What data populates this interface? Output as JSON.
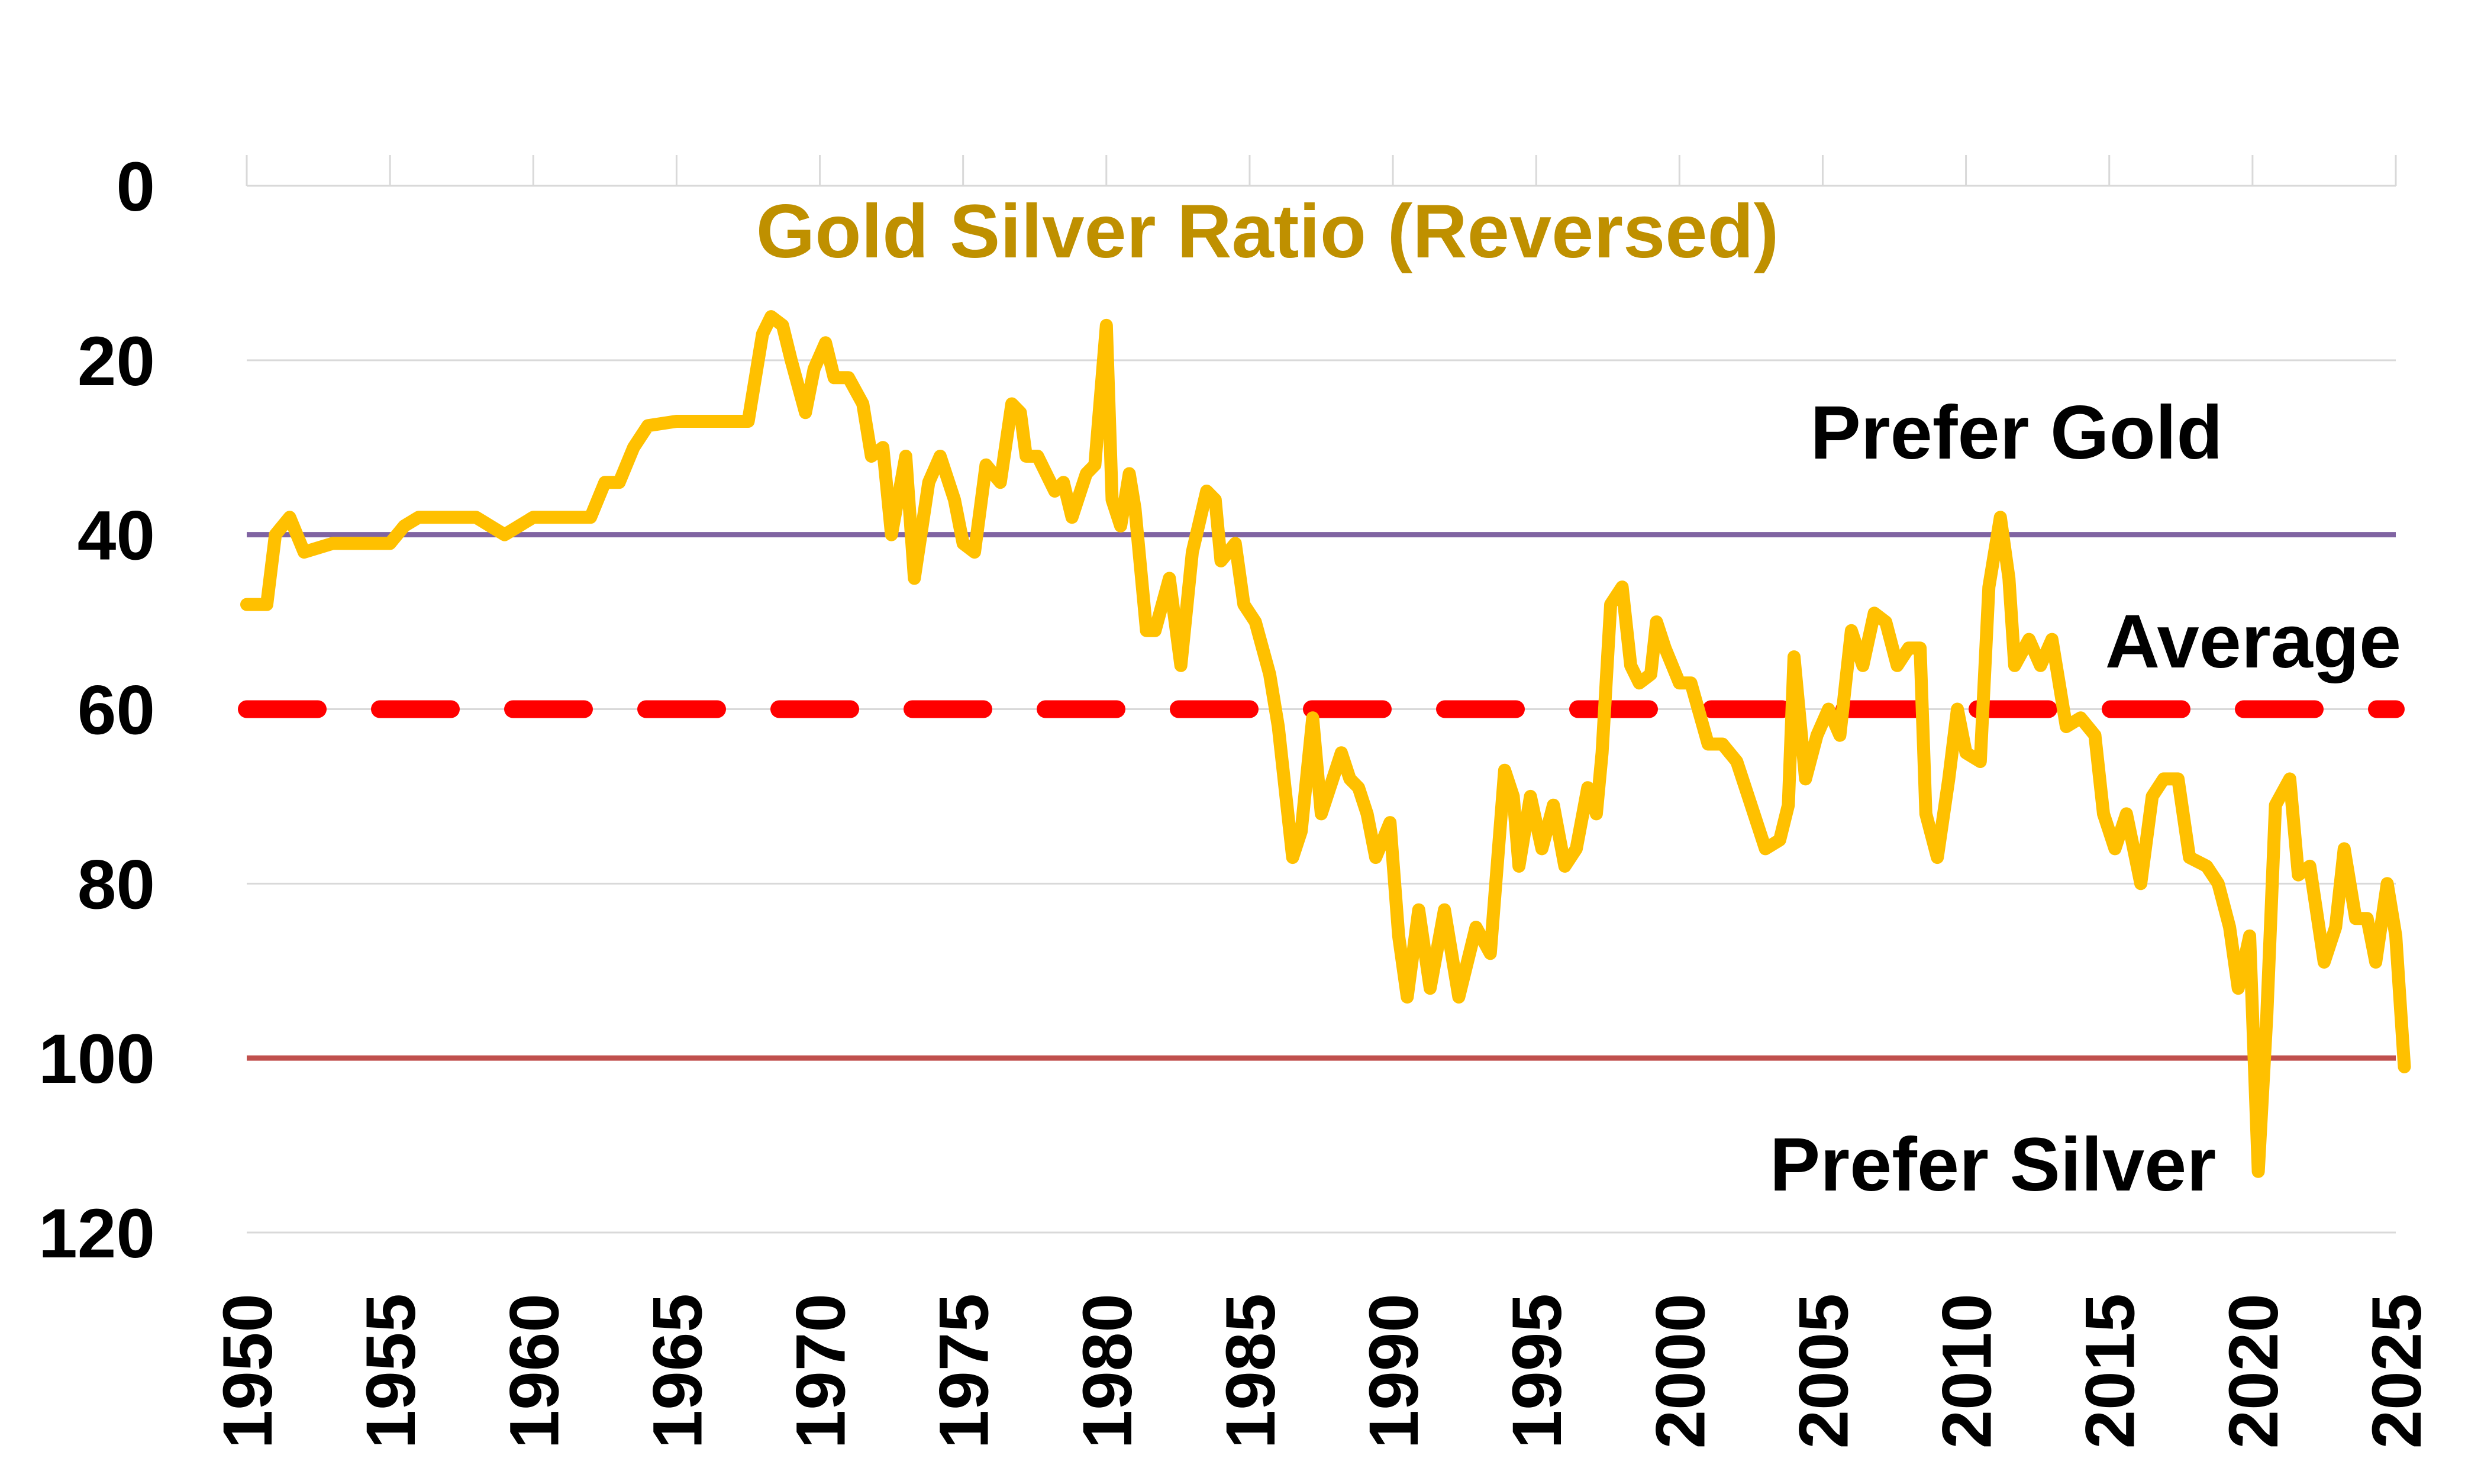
{
  "chart_data": {
    "type": "line",
    "title": "Gold Silver Ratio (Reversed)",
    "xlabel": "",
    "ylabel": "",
    "xlim": [
      1950,
      2025
    ],
    "ylim": [
      0,
      120
    ],
    "y_reversed": true,
    "grid": true,
    "x_ticks": [
      "1950",
      "1955",
      "1960",
      "1965",
      "1970",
      "1975",
      "1980",
      "1985",
      "1990",
      "1995",
      "2000",
      "2005",
      "2010",
      "2015",
      "2020",
      "2025"
    ],
    "y_ticks": [
      "0",
      "20",
      "40",
      "60",
      "80",
      "100",
      "120"
    ],
    "colors": {
      "series": "#FFC000",
      "title": "#BF9000",
      "prefer_gold_line": "#8064A2",
      "prefer_silver_line": "#C0504D",
      "average_line": "#FF0000",
      "grid": "#D9D9D9"
    },
    "reference_lines": [
      {
        "label": "Prefer Gold",
        "value": 40,
        "style": "solid"
      },
      {
        "label": "Average",
        "value": 60,
        "style": "dashed"
      },
      {
        "label": "Prefer Silver",
        "value": 100,
        "style": "solid"
      }
    ],
    "series": [
      {
        "x": [
          1950,
          1950.7,
          1951,
          1951.5,
          1952,
          1953,
          1954,
          1955,
          1955.5,
          1956,
          1957,
          1958,
          1959,
          1960,
          1961,
          1962,
          1962.5,
          1963,
          1963.5,
          1964,
          1965,
          1966,
          1967,
          1967.5,
          1967.8,
          1968,
          1968.3,
          1968.7,
          1969,
          1969.5,
          1969.8,
          1970.2,
          1970.5,
          1971,
          1971.5,
          1971.8,
          1972.2,
          1972.5,
          1973,
          1973.3,
          1973.8,
          1974.2,
          1974.7,
          1975,
          1975.4,
          1975.8,
          1976.3,
          1976.7,
          1977,
          1977.2,
          1977.6,
          1978.2,
          1978.5,
          1978.8,
          1979.3,
          1979.6,
          1980,
          1980.2,
          1980.5,
          1980.8,
          1981,
          1981.4,
          1981.7,
          1982.2,
          1982.6,
          1983,
          1983.5,
          1983.8,
          1984,
          1984.5,
          1984.8,
          1985.2,
          1985.7,
          1986,
          1986.5,
          1986.8,
          1987.2,
          1987.5,
          1987.9,
          1988.2,
          1988.5,
          1988.8,
          1989.1,
          1989.4,
          1989.9,
          1990.2,
          1990.5,
          1990.9,
          1991.3,
          1991.8,
          1992.3,
          1992.9,
          1993.4,
          1993.9,
          1994.2,
          1994.4,
          1994.8,
          1995.2,
          1995.6,
          1996,
          1996.4,
          1996.8,
          1997.1,
          1997.3,
          1997.6,
          1998,
          1998.3,
          1998.6,
          1999,
          1999.2,
          1999.5,
          2000,
          2000.4,
          2001,
          2001.5,
          2002,
          2002.4,
          2003,
          2003.5,
          2003.8,
          2004,
          2004.4,
          2004.8,
          2005.2,
          2005.6,
          2006,
          2006.4,
          2006.8,
          2007.2,
          2007.6,
          2008,
          2008.4,
          2008.6,
          2009,
          2009.4,
          2009.7,
          2010,
          2010.5,
          2010.8,
          2011.2,
          2011.5,
          2011.7,
          2012.2,
          2012.6,
          2013,
          2013.5,
          2014,
          2014.5,
          2014.8,
          2015.2,
          2015.6,
          2016.1,
          2016.5,
          2016.9,
          2017.4,
          2017.8,
          2018.4,
          2018.8,
          2019.2,
          2019.5,
          2019.9,
          2020.2,
          2020.5,
          2020.8,
          2021.3,
          2021.6,
          2022,
          2022.5,
          2022.9,
          2023.2,
          2023.6,
          2024,
          2024.3,
          2024.7,
          2025,
          2025.1,
          2025.3
        ],
        "values": [
          48,
          48,
          40,
          38,
          42,
          41,
          41,
          41,
          39,
          38,
          38,
          38,
          40,
          38,
          38,
          38,
          34,
          34,
          30,
          27.5,
          27,
          27,
          27,
          27,
          21,
          17,
          15,
          16,
          20,
          26,
          21,
          18,
          22,
          22,
          25,
          31,
          30,
          40,
          31,
          45,
          34,
          31,
          36,
          41,
          42,
          32,
          34,
          25,
          26,
          31,
          31,
          35,
          34,
          38,
          33,
          32,
          16,
          36,
          39,
          33,
          37,
          51,
          51,
          45,
          55,
          42,
          35,
          36,
          43,
          41,
          48,
          50,
          56,
          62,
          77,
          74,
          61,
          72,
          68,
          65,
          68,
          69,
          72,
          77,
          73,
          86,
          93,
          83,
          92,
          83,
          93,
          85,
          88,
          67,
          70,
          78,
          70,
          76,
          71,
          78,
          76,
          69,
          72,
          65,
          48,
          46,
          55,
          57,
          56,
          50,
          53,
          57,
          57,
          64,
          64,
          66,
          70,
          76,
          75,
          71,
          54,
          68,
          63,
          60,
          63,
          51,
          55,
          49,
          50,
          55,
          53,
          53,
          72,
          77,
          68,
          60,
          65,
          66,
          46,
          38,
          45,
          55,
          52,
          55,
          52,
          62,
          61,
          63,
          72,
          76,
          72,
          80,
          70,
          68,
          68,
          77,
          78,
          80,
          85,
          92,
          86,
          113,
          95,
          71,
          68,
          79,
          78,
          89,
          85,
          76,
          84,
          84,
          89,
          80,
          86,
          91,
          101
        ]
      }
    ]
  }
}
